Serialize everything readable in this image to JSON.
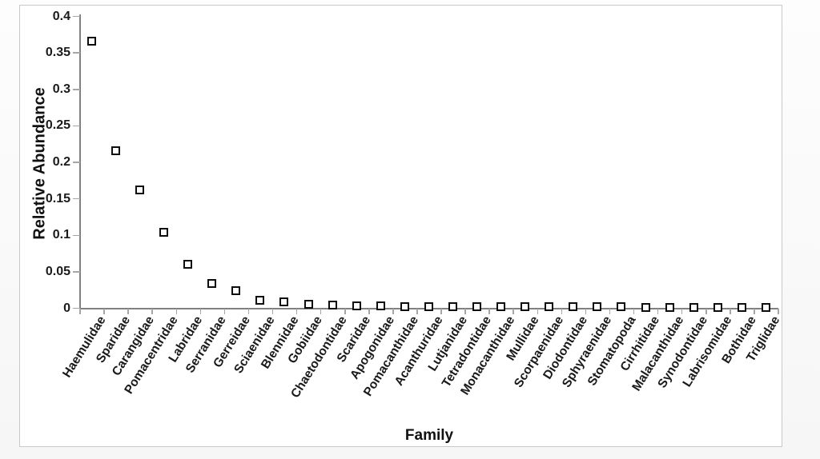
{
  "chart_data": {
    "type": "scatter",
    "title": "",
    "xlabel": "Family",
    "ylabel": "Relative Abundance",
    "ylim": [
      0,
      0.4
    ],
    "yticks": [
      0,
      0.05,
      0.1,
      0.15,
      0.2,
      0.25,
      0.3,
      0.35,
      0.4
    ],
    "ytick_labels": [
      "0",
      "0.05",
      "0.1",
      "0.15",
      "0.2",
      "0.25",
      "0.3",
      "0.35",
      "0.4"
    ],
    "grid": false,
    "legend_position": "none",
    "marker_style": "open-square",
    "categories": [
      "Haemulidae",
      "Sparidae",
      "Carangidae",
      "Pomacentridae",
      "Labridae",
      "Serranidae",
      "Gerreidae",
      "Sciaenidae",
      "Blennidae",
      "Gobiidae",
      "Chaetodontidae",
      "Scaridae",
      "Apogonidae",
      "Pomacanthidae",
      "Acanthuridae",
      "Lutjanidae",
      "Tetradontidae",
      "Monacanthidae",
      "Mullidae",
      "Scorpaenidae",
      "Diodontidae",
      "Sphyraenidae",
      "Stomatopoda",
      "Cirrhitidae",
      "Malacanthidae",
      "Synodontidae",
      "Labrisomidae",
      "Bothidae",
      "Triglidae"
    ],
    "values": [
      0.365,
      0.215,
      0.162,
      0.104,
      0.06,
      0.033,
      0.023,
      0.01,
      0.008,
      0.005,
      0.004,
      0.003,
      0.003,
      0.002,
      0.002,
      0.002,
      0.0015,
      0.0015,
      0.001,
      0.001,
      0.001,
      0.001,
      0.001,
      0.0008,
      0.0008,
      0.0008,
      0.0005,
      0.0005,
      0.0005
    ]
  },
  "colors": {
    "marker_border": "#0d0d0d",
    "marker_fill": "#ffffff",
    "axis_line": "#808080",
    "tick_mark": "#a6a6a6",
    "text": "#1a1a1a",
    "chart_border": "#c9c9c9",
    "chart_background": "#ffffff"
  }
}
